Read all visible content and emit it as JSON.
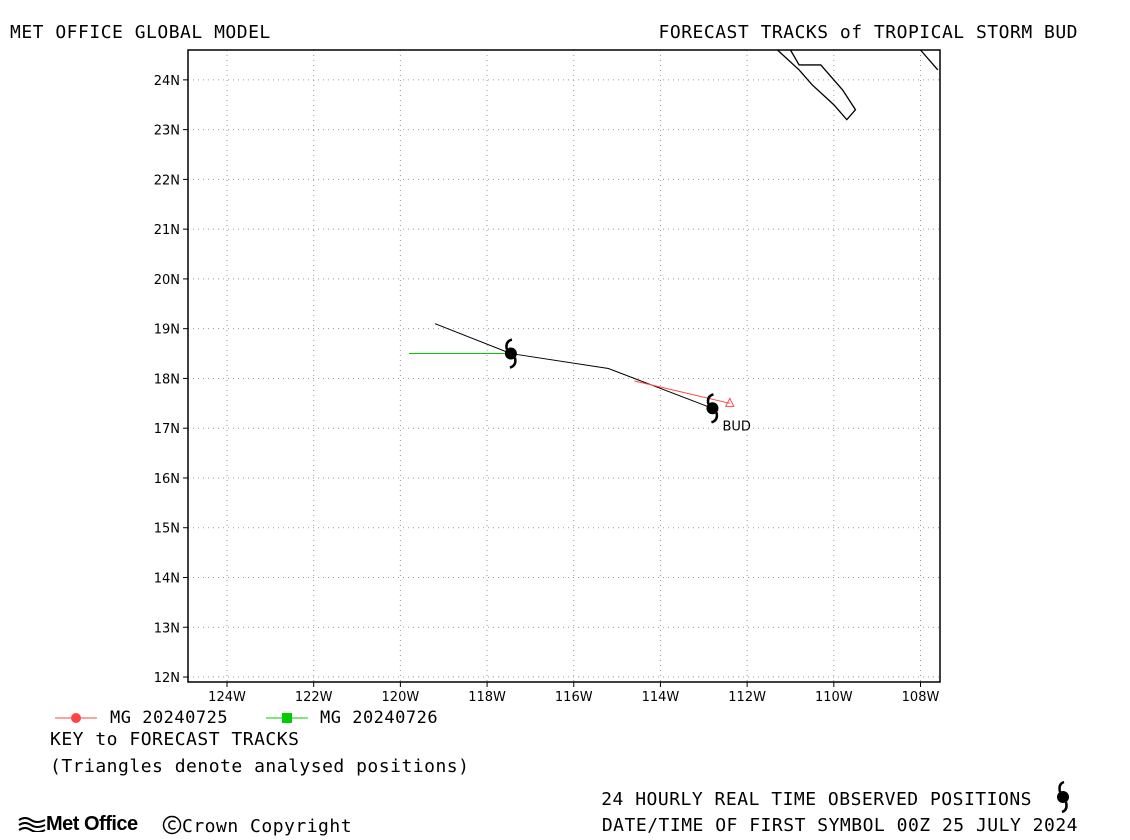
{
  "header": {
    "left_title": "MET OFFICE GLOBAL MODEL",
    "right_title": "FORECAST TRACKS of TROPICAL STORM BUD"
  },
  "map": {
    "lat_labels": [
      "24N",
      "23N",
      "22N",
      "21N",
      "20N",
      "19N",
      "18N",
      "17N",
      "16N",
      "15N",
      "14N",
      "13N",
      "12N"
    ],
    "lon_labels": [
      "124W",
      "122W",
      "120W",
      "118W",
      "116W",
      "114W",
      "112W",
      "110W",
      "108W"
    ],
    "lon_range": [
      -124.9,
      -107.55
    ],
    "lat_range": [
      11.9,
      24.6
    ],
    "grid": "dotted",
    "storm_label": "BUD",
    "observed_positions": [
      {
        "lon": -112.8,
        "lat": 17.4
      },
      {
        "lon": -117.45,
        "lat": 18.5
      }
    ],
    "observed_track": [
      [
        -112.8,
        17.4
      ],
      [
        -115.2,
        18.2
      ],
      [
        -117.45,
        18.5
      ],
      [
        -119.2,
        19.1
      ]
    ],
    "tracks": [
      {
        "name": "MG 20240725",
        "color": "#ff4444",
        "marker": "circle",
        "points": [
          [
            -112.4,
            17.5
          ],
          [
            -114.6,
            17.95
          ]
        ],
        "analysed": [
          -112.4,
          17.5
        ]
      },
      {
        "name": "MG 20240726",
        "color": "#00cc00",
        "marker": "square",
        "points": [
          [
            -117.45,
            18.5
          ],
          [
            -119.8,
            18.5
          ]
        ],
        "analysed": [
          -117.45,
          18.5
        ]
      }
    ],
    "coastline": [
      [
        [
          -111.3,
          24.6
        ],
        [
          -110.8,
          24.2
        ],
        [
          -110.5,
          23.9
        ],
        [
          -110.0,
          23.5
        ],
        [
          -109.7,
          23.2
        ],
        [
          -109.5,
          23.4
        ],
        [
          -109.8,
          23.8
        ],
        [
          -110.2,
          24.2
        ],
        [
          -110.3,
          24.3
        ],
        [
          -110.8,
          24.3
        ],
        [
          -111.0,
          24.6
        ]
      ],
      [
        [
          -108.0,
          24.6
        ],
        [
          -107.6,
          24.2
        ]
      ]
    ]
  },
  "legend": {
    "item1": "MG 20240725",
    "item2": "MG 20240726"
  },
  "key": {
    "title": "KEY to FORECAST TRACKS",
    "note": "(Triangles denote analysed positions)"
  },
  "footer": {
    "brand": "Met Office",
    "copyright": "Crown Copyright",
    "observed": "24 HOURLY REAL TIME OBSERVED POSITIONS",
    "datetime": "DATE/TIME OF FIRST SYMBOL 00Z 25 JULY 2024"
  }
}
